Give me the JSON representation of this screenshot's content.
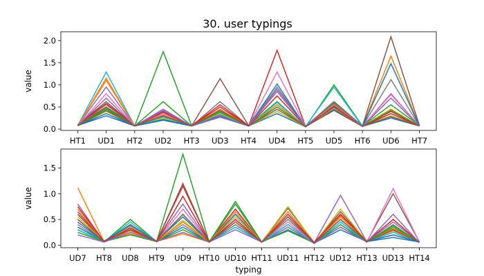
{
  "chart_data": {
    "type": "line",
    "title": "30. user typings",
    "colors": [
      "#1f77b4",
      "#ff7f0e",
      "#2ca02c",
      "#d62728",
      "#9467bd",
      "#8c564b",
      "#e377c2",
      "#7f7f7f",
      "#bcbd22",
      "#17becf"
    ],
    "subplots": [
      {
        "categories": [
          "HT1",
          "UD1",
          "HT2",
          "UD2",
          "HT3",
          "UD3",
          "HT4",
          "UD4",
          "HT5",
          "UD5",
          "HT6",
          "UD6",
          "HT7"
        ],
        "ylabel": "value",
        "xlabel": "",
        "ylim": [
          -0.03,
          2.2
        ],
        "yticks": [
          0.0,
          0.5,
          1.0,
          1.5,
          2.0
        ],
        "grid": false,
        "series": [
          {
            "values": [
              0.08,
              0.3,
              0.07,
              0.2,
              0.07,
              0.27,
              0.07,
              0.35,
              0.05,
              0.45,
              0.06,
              0.25,
              0.07
            ]
          },
          {
            "values": [
              0.07,
              1.15,
              0.07,
              0.26,
              0.07,
              0.38,
              0.07,
              0.55,
              0.06,
              0.5,
              0.06,
              1.65,
              0.07
            ]
          },
          {
            "values": [
              0.08,
              0.45,
              0.07,
              1.75,
              0.08,
              0.42,
              0.08,
              0.62,
              0.05,
              1.0,
              0.07,
              0.55,
              0.08
            ]
          },
          {
            "values": [
              0.09,
              0.5,
              0.07,
              0.3,
              0.07,
              0.5,
              0.07,
              1.78,
              0.06,
              0.55,
              0.06,
              0.4,
              0.07
            ]
          },
          {
            "values": [
              0.08,
              0.95,
              0.07,
              0.45,
              0.07,
              0.33,
              0.07,
              0.9,
              0.06,
              0.6,
              0.06,
              0.8,
              0.07
            ]
          },
          {
            "values": [
              0.1,
              0.62,
              0.08,
              0.4,
              0.07,
              1.14,
              0.08,
              0.5,
              0.06,
              0.62,
              0.07,
              2.09,
              0.08
            ]
          },
          {
            "values": [
              0.07,
              0.8,
              0.07,
              0.35,
              0.07,
              0.4,
              0.07,
              1.29,
              0.06,
              0.55,
              0.06,
              0.78,
              0.07
            ]
          },
          {
            "values": [
              0.08,
              0.55,
              0.07,
              0.3,
              0.07,
              0.62,
              0.07,
              0.95,
              0.06,
              0.5,
              0.06,
              1.12,
              0.07
            ]
          },
          {
            "values": [
              0.07,
              0.4,
              0.07,
              0.25,
              0.07,
              0.35,
              0.07,
              0.4,
              0.05,
              0.48,
              0.06,
              0.3,
              0.07
            ]
          },
          {
            "values": [
              0.08,
              1.29,
              0.07,
              0.28,
              0.07,
              0.4,
              0.07,
              0.6,
              0.06,
              0.95,
              0.06,
              0.35,
              0.07
            ]
          },
          {
            "values": [
              0.08,
              0.35,
              0.07,
              0.22,
              0.07,
              0.3,
              0.07,
              1.02,
              0.05,
              0.52,
              0.06,
              1.48,
              0.07
            ]
          },
          {
            "values": [
              0.07,
              1.1,
              0.07,
              0.32,
              0.07,
              0.45,
              0.07,
              0.55,
              0.06,
              0.55,
              0.06,
              0.45,
              0.07
            ]
          },
          {
            "values": [
              0.08,
              0.48,
              0.07,
              0.62,
              0.07,
              0.38,
              0.07,
              0.5,
              0.06,
              0.6,
              0.06,
              0.42,
              0.07
            ]
          },
          {
            "values": [
              0.09,
              0.58,
              0.07,
              0.38,
              0.07,
              0.55,
              0.07,
              0.75,
              0.06,
              0.5,
              0.06,
              0.35,
              0.07
            ]
          },
          {
            "values": [
              0.08,
              0.7,
              0.07,
              0.42,
              0.07,
              0.28,
              0.07,
              0.85,
              0.06,
              0.58,
              0.06,
              0.7,
              0.07
            ]
          },
          {
            "values": [
              0.08,
              0.42,
              0.07,
              0.3,
              0.07,
              0.42,
              0.07,
              0.45,
              0.06,
              0.42,
              0.06,
              0.28,
              0.07
            ]
          }
        ]
      },
      {
        "categories": [
          "UD7",
          "HT8",
          "UD8",
          "HT9",
          "UD9",
          "HT10",
          "UD10",
          "HT11",
          "UD11",
          "HT12",
          "UD12",
          "HT13",
          "UD13",
          "HT14"
        ],
        "ylabel": "value",
        "xlabel": "typing",
        "ylim": [
          -0.05,
          1.87
        ],
        "yticks": [
          0.0,
          0.5,
          1.0,
          1.5
        ],
        "grid": false,
        "series": [
          {
            "values": [
              0.35,
              0.07,
              0.3,
              0.08,
              0.55,
              0.06,
              0.35,
              0.06,
              0.3,
              0.05,
              0.35,
              0.07,
              0.15,
              0.06
            ]
          },
          {
            "values": [
              1.12,
              0.07,
              0.22,
              0.07,
              0.22,
              0.06,
              0.4,
              0.06,
              0.5,
              0.04,
              0.58,
              0.07,
              0.28,
              0.06
            ]
          },
          {
            "values": [
              0.3,
              0.06,
              0.5,
              0.07,
              1.77,
              0.06,
              0.85,
              0.06,
              0.35,
              0.04,
              0.5,
              0.06,
              0.35,
              0.06
            ]
          },
          {
            "values": [
              0.6,
              0.08,
              0.35,
              0.08,
              1.15,
              0.07,
              0.7,
              0.06,
              0.4,
              0.05,
              0.6,
              0.07,
              0.2,
              0.07
            ]
          },
          {
            "values": [
              0.8,
              0.07,
              0.38,
              0.08,
              0.8,
              0.06,
              0.6,
              0.06,
              0.55,
              0.05,
              0.97,
              0.07,
              0.45,
              0.06
            ]
          },
          {
            "values": [
              0.65,
              0.07,
              0.4,
              0.07,
              1.2,
              0.06,
              0.5,
              0.06,
              0.72,
              0.05,
              0.65,
              0.07,
              1.0,
              0.06
            ]
          },
          {
            "values": [
              0.5,
              0.07,
              0.3,
              0.07,
              0.7,
              0.06,
              0.45,
              0.06,
              0.45,
              0.04,
              0.4,
              0.06,
              1.1,
              0.06
            ]
          },
          {
            "values": [
              0.4,
              0.06,
              0.25,
              0.07,
              0.4,
              0.06,
              0.4,
              0.06,
              0.5,
              0.04,
              0.45,
              0.06,
              0.4,
              0.05
            ]
          },
          {
            "values": [
              0.55,
              0.07,
              0.35,
              0.07,
              0.48,
              0.06,
              0.55,
              0.06,
              0.75,
              0.04,
              0.7,
              0.07,
              0.3,
              0.06
            ]
          },
          {
            "values": [
              0.3,
              0.06,
              0.45,
              0.07,
              0.6,
              0.06,
              0.35,
              0.06,
              0.4,
              0.03,
              0.45,
              0.06,
              0.25,
              0.05
            ]
          },
          {
            "values": [
              0.45,
              0.07,
              0.4,
              0.07,
              0.35,
              0.06,
              0.6,
              0.06,
              0.3,
              0.04,
              0.3,
              0.07,
              0.2,
              0.06
            ]
          },
          {
            "values": [
              0.7,
              0.07,
              0.28,
              0.07,
              0.45,
              0.06,
              0.65,
              0.06,
              0.65,
              0.05,
              0.55,
              0.07,
              0.32,
              0.06
            ]
          },
          {
            "values": [
              0.25,
              0.07,
              0.2,
              0.07,
              0.3,
              0.06,
              0.8,
              0.06,
              0.28,
              0.04,
              0.4,
              0.06,
              0.38,
              0.06
            ]
          },
          {
            "values": [
              0.75,
              0.07,
              0.33,
              0.07,
              0.95,
              0.06,
              0.5,
              0.06,
              0.6,
              0.05,
              0.6,
              0.07,
              0.5,
              0.06
            ]
          },
          {
            "values": [
              0.2,
              0.06,
              0.25,
              0.07,
              0.25,
              0.06,
              0.3,
              0.06,
              0.35,
              0.04,
              0.35,
              0.06,
              0.6,
              0.05
            ]
          },
          {
            "values": [
              0.5,
              0.07,
              0.3,
              0.07,
              0.6,
              0.06,
              0.45,
              0.06,
              0.55,
              0.04,
              0.5,
              0.07,
              0.3,
              0.06
            ]
          }
        ]
      }
    ]
  }
}
